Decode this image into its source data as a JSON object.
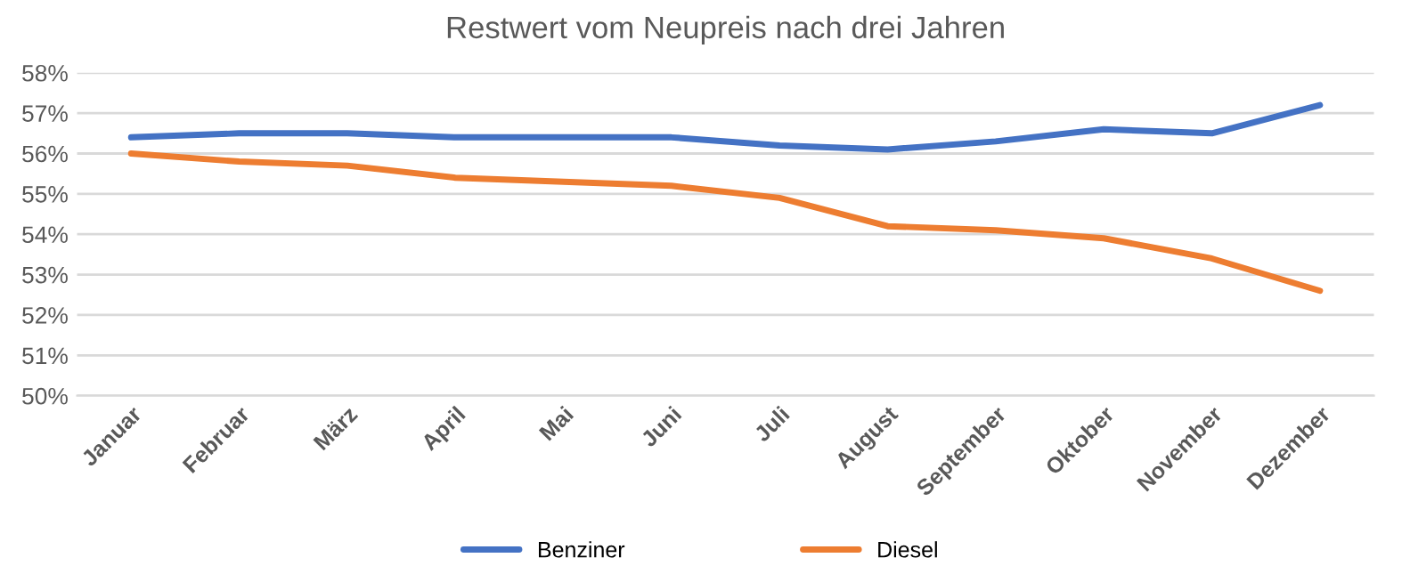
{
  "chart_data": {
    "type": "line",
    "title": "Restwert vom Neupreis nach drei Jahren",
    "categories": [
      "Januar",
      "Februar",
      "März",
      "April",
      "Mai",
      "Juni",
      "Juli",
      "August",
      "September",
      "Oktober",
      "November",
      "Dezember"
    ],
    "series": [
      {
        "name": "Benziner",
        "color": "#4472c4",
        "values": [
          56.4,
          56.5,
          56.5,
          56.4,
          56.4,
          56.4,
          56.2,
          56.1,
          56.3,
          56.6,
          56.5,
          57.2
        ]
      },
      {
        "name": "Diesel",
        "color": "#ed7d31",
        "values": [
          56.0,
          55.8,
          55.7,
          55.4,
          55.3,
          55.2,
          54.9,
          54.2,
          54.1,
          53.9,
          53.4,
          52.6
        ]
      }
    ],
    "ylim": [
      50,
      58
    ],
    "yticks": [
      {
        "value": 50,
        "label": "50%"
      },
      {
        "value": 51,
        "label": "51%"
      },
      {
        "value": 52,
        "label": "52%"
      },
      {
        "value": 53,
        "label": "53%"
      },
      {
        "value": 54,
        "label": "54%"
      },
      {
        "value": 55,
        "label": "55%"
      },
      {
        "value": 56,
        "label": "56%"
      },
      {
        "value": 57,
        "label": "57%"
      },
      {
        "value": 58,
        "label": "58%"
      }
    ],
    "grid": "y",
    "legend": "bottom",
    "marker": "none",
    "line_style": "solid"
  }
}
